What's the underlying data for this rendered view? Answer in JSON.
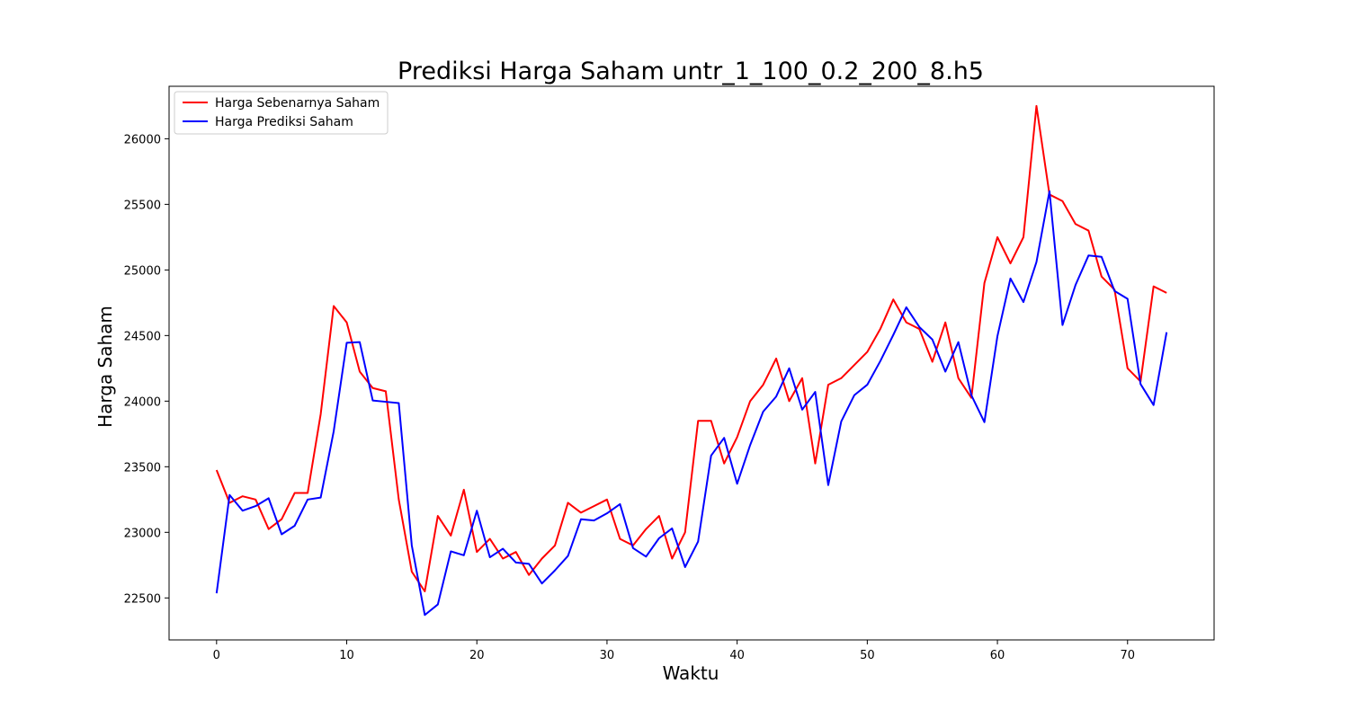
{
  "chart_data": {
    "type": "line",
    "title": "Prediksi Harga Saham untr_1_100_0.2_200_8.h5",
    "xlabel": "Waktu",
    "ylabel": "Harga Saham",
    "xlim": [
      -3.65,
      76.65
    ],
    "ylim": [
      22180,
      26400
    ],
    "xticks": [
      0,
      10,
      20,
      30,
      40,
      50,
      60,
      70
    ],
    "yticks": [
      22500,
      23000,
      23500,
      24000,
      24500,
      25000,
      25500,
      26000
    ],
    "grid": false,
    "legend": "top-left",
    "x": [
      0,
      1,
      2,
      3,
      4,
      5,
      6,
      7,
      8,
      9,
      10,
      11,
      12,
      13,
      14,
      15,
      16,
      17,
      18,
      19,
      20,
      21,
      22,
      23,
      24,
      25,
      26,
      27,
      28,
      29,
      30,
      31,
      32,
      33,
      34,
      35,
      36,
      37,
      38,
      39,
      40,
      41,
      42,
      43,
      44,
      45,
      46,
      47,
      48,
      49,
      50,
      51,
      52,
      53,
      54,
      55,
      56,
      57,
      58,
      59,
      60,
      61,
      62,
      63,
      64,
      65,
      66,
      67,
      68,
      69,
      70,
      71,
      72,
      73
    ],
    "series": [
      {
        "name": "Harga Sebenarnya Saham",
        "color": "#ff0000",
        "values": [
          23475,
          23225,
          23275,
          23250,
          23025,
          23100,
          23300,
          23300,
          23900,
          24725,
          24600,
          24225,
          24100,
          24075,
          23250,
          22700,
          22550,
          23125,
          22975,
          23325,
          22850,
          22950,
          22800,
          22850,
          22675,
          22800,
          22900,
          23225,
          23150,
          23200,
          23250,
          22950,
          22900,
          23025,
          23125,
          22800,
          23000,
          23850,
          23850,
          23525,
          23725,
          24000,
          24125,
          24325,
          24000,
          24175,
          23525,
          24125,
          24175,
          24275,
          24375,
          24550,
          24775,
          24600,
          24550,
          24300,
          24600,
          24175,
          24025,
          24900,
          25250,
          25050,
          25250,
          26250,
          25575,
          25525,
          25350,
          25300,
          24950,
          24850,
          24250,
          24150,
          24875,
          24825
        ]
      },
      {
        "name": "Harga Prediksi Saham",
        "color": "#0000ff",
        "values": [
          22535,
          23285,
          23165,
          23200,
          23260,
          22985,
          23050,
          23250,
          23265,
          23770,
          24445,
          24450,
          24005,
          23995,
          23985,
          22900,
          22370,
          22450,
          22855,
          22825,
          23165,
          22810,
          22875,
          22770,
          22760,
          22610,
          22710,
          22820,
          23100,
          23090,
          23145,
          23215,
          22880,
          22815,
          22955,
          23030,
          22735,
          22930,
          23585,
          23720,
          23370,
          23665,
          23920,
          24035,
          24250,
          23935,
          24070,
          23360,
          23845,
          24045,
          24125,
          24305,
          24505,
          24715,
          24565,
          24470,
          24225,
          24450,
          24045,
          23840,
          24495,
          24935,
          24755,
          25060,
          25600,
          24580,
          24885,
          25110,
          25100,
          24840,
          24780,
          24130,
          23970,
          24525
        ]
      }
    ]
  }
}
